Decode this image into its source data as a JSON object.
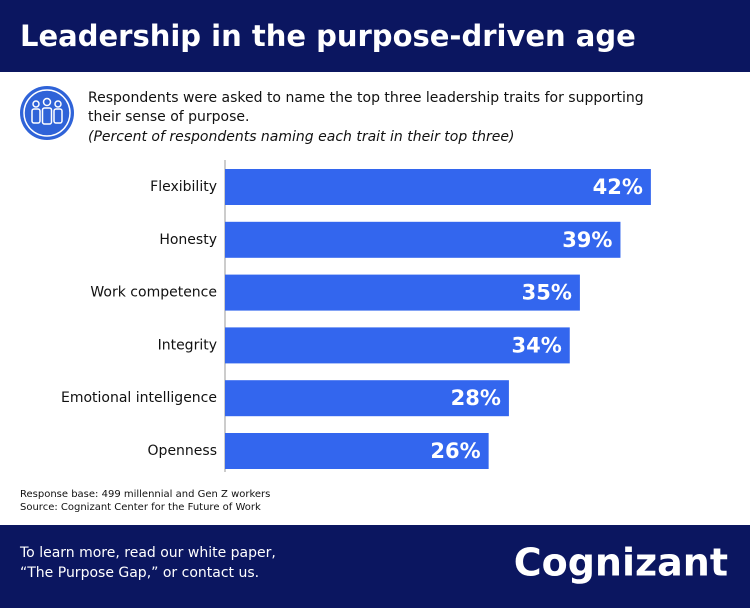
{
  "chart_data": {
    "type": "bar",
    "orientation": "horizontal",
    "title": "Leadership in the purpose-driven age",
    "subtitle": [
      "Respondents were asked to name the top three leadership traits for supporting",
      "their sense of purpose."
    ],
    "unit_note": "(Percent of respondents naming each trait in their top three)",
    "categories": [
      "Flexibility",
      "Honesty",
      "Work competence",
      "Integrity",
      "Emotional intelligence",
      "Openness"
    ],
    "values": [
      42,
      39,
      35,
      34,
      28,
      26
    ],
    "value_labels": [
      "42%",
      "39%",
      "35%",
      "34%",
      "28%",
      "26%"
    ],
    "color": "#3366ee",
    "notes": [
      "Response base: 499 millennial and Gen Z workers",
      "Source: Cognizant Center for the Future of Work"
    ]
  },
  "footer": {
    "lines": [
      "To learn more, read our white paper,",
      "“The Purpose Gap,” or contact us."
    ],
    "brand": "Cognizant"
  }
}
